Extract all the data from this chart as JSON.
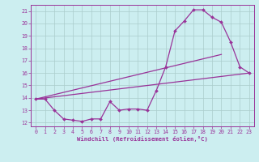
{
  "xlabel": "Windchill (Refroidissement éolien,°C)",
  "bg_color": "#cceef0",
  "line_color": "#993399",
  "grid_color": "#aacccc",
  "series1_x": [
    0,
    1,
    2,
    3,
    4,
    5,
    6,
    7,
    8,
    9,
    10,
    11,
    12,
    13,
    14,
    15,
    16,
    17,
    18,
    19,
    20,
    21,
    22,
    23
  ],
  "series1_y": [
    13.9,
    13.9,
    13.0,
    12.3,
    12.2,
    12.1,
    12.3,
    12.3,
    13.7,
    13.0,
    13.1,
    13.1,
    13.0,
    14.6,
    16.5,
    19.4,
    20.2,
    21.1,
    21.1,
    20.5,
    20.1,
    18.5,
    16.5,
    16.0
  ],
  "line2_x": [
    0,
    23
  ],
  "line2_y": [
    13.9,
    16.0
  ],
  "line3_x": [
    0,
    20
  ],
  "line3_y": [
    13.9,
    17.5
  ],
  "ylim_min": 11.7,
  "ylim_max": 21.5,
  "xlim_min": -0.5,
  "xlim_max": 23.5,
  "yticks": [
    12,
    13,
    14,
    15,
    16,
    17,
    18,
    19,
    20,
    21
  ],
  "xticks": [
    0,
    1,
    2,
    3,
    4,
    5,
    6,
    7,
    8,
    9,
    10,
    11,
    12,
    13,
    14,
    15,
    16,
    17,
    18,
    19,
    20,
    21,
    22,
    23
  ]
}
